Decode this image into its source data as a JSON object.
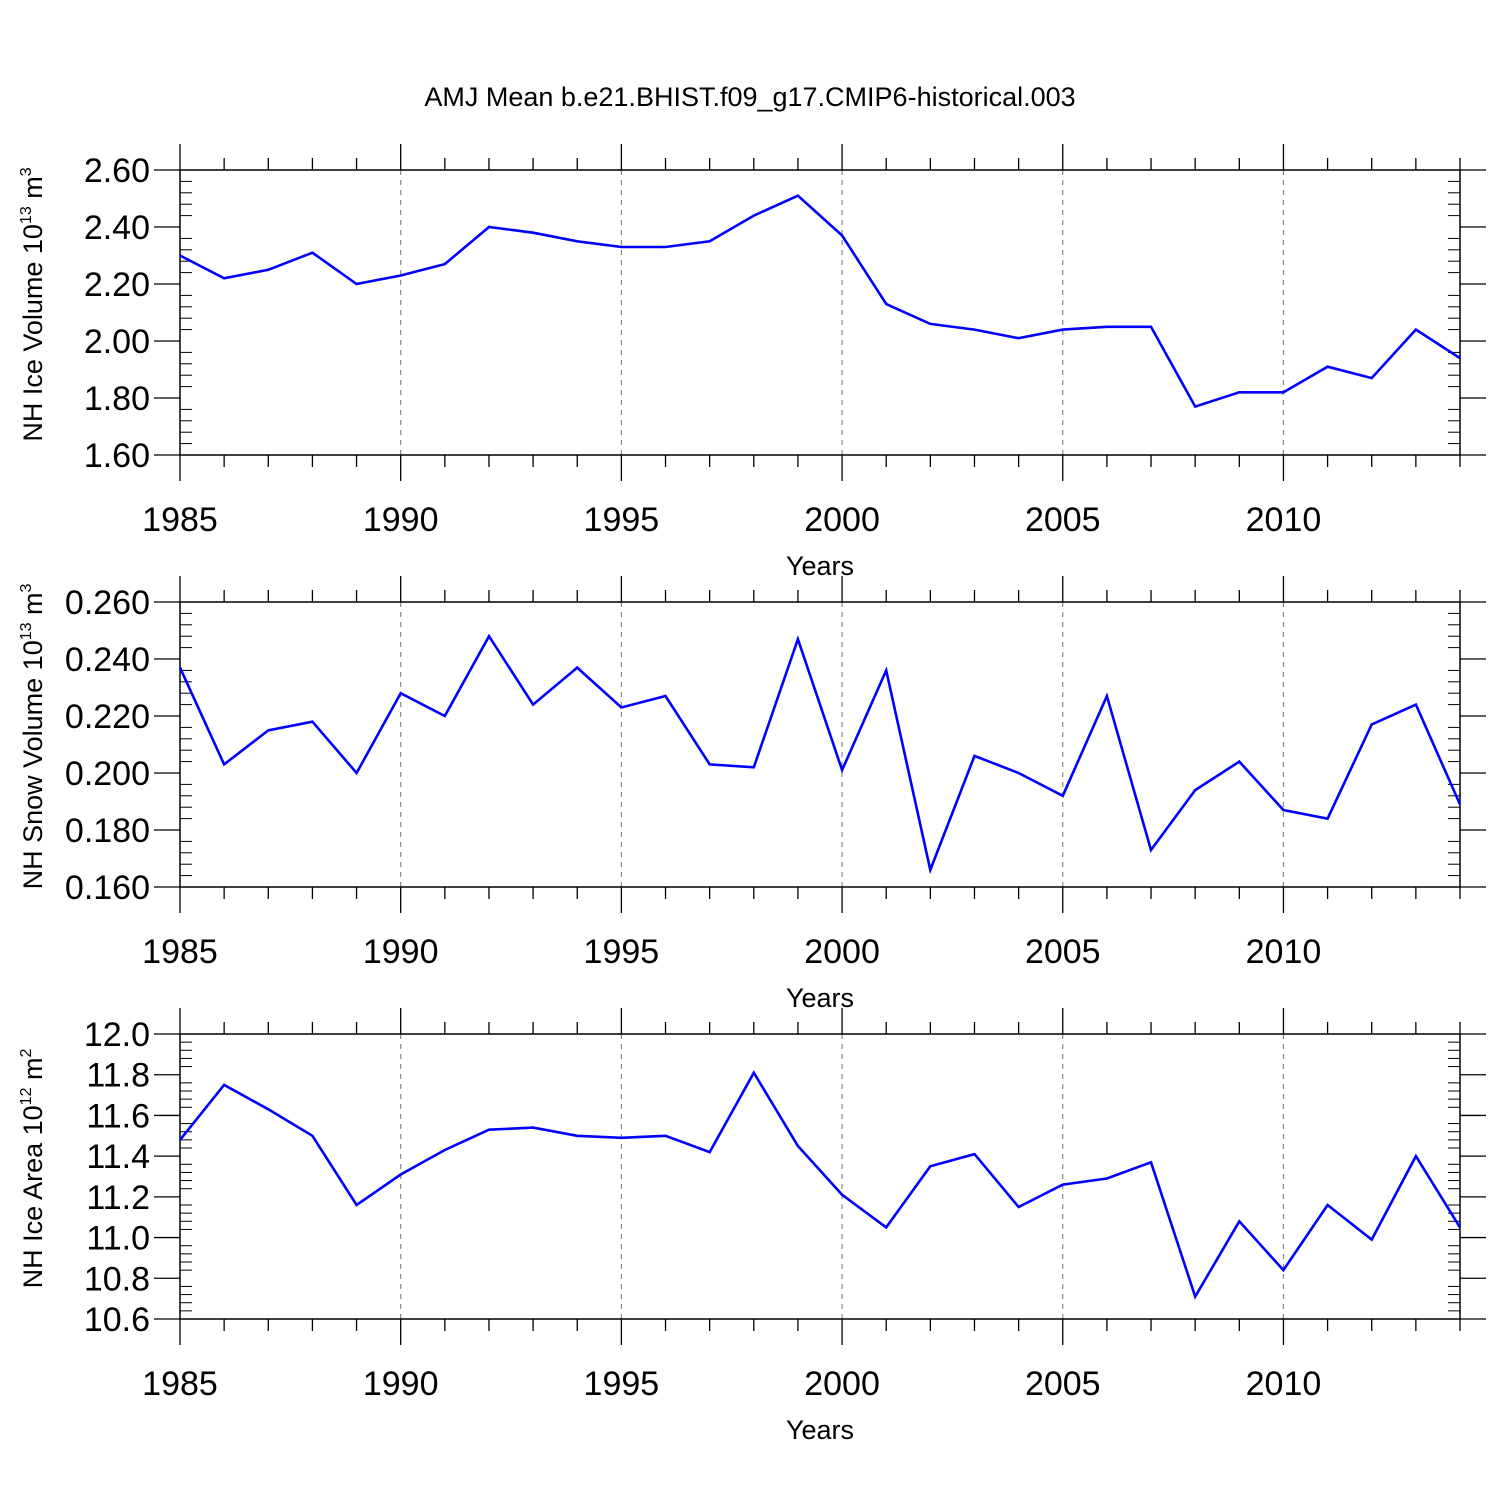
{
  "title": "AMJ Mean b.e21.BHIST.f09_g17.CMIP6-historical.003",
  "line_color": "#0000ff",
  "chart_data": [
    {
      "type": "line",
      "ylabel": {
        "main": "NH Ice Volume 10",
        "exp": "13",
        "unit": " m",
        "unit_exp": "3"
      },
      "xlabel": "Years",
      "x": [
        1985,
        1986,
        1987,
        1988,
        1989,
        1990,
        1991,
        1992,
        1993,
        1994,
        1995,
        1996,
        1997,
        1998,
        1999,
        2000,
        2001,
        2002,
        2003,
        2004,
        2005,
        2006,
        2007,
        2008,
        2009,
        2010,
        2011,
        2012,
        2013,
        2014
      ],
      "values": [
        2.3,
        2.22,
        2.25,
        2.31,
        2.2,
        2.23,
        2.27,
        2.4,
        2.38,
        2.35,
        2.33,
        2.33,
        2.35,
        2.44,
        2.51,
        2.37,
        2.13,
        2.06,
        2.04,
        2.01,
        2.04,
        2.05,
        2.05,
        1.77,
        1.82,
        1.82,
        1.91,
        1.87,
        2.04,
        1.94
      ],
      "xlim": [
        1985,
        2014
      ],
      "ylim": [
        1.6,
        2.6
      ],
      "yticks": [
        "1.60",
        "1.80",
        "2.00",
        "2.20",
        "2.40",
        "2.60"
      ],
      "xticks": [
        "1985",
        "1990",
        "1995",
        "2000",
        "2005",
        "2010"
      ]
    },
    {
      "type": "line",
      "ylabel": {
        "main": "NH Snow Volume 10",
        "exp": "13",
        "unit": " m",
        "unit_exp": "3"
      },
      "xlabel": "Years",
      "x": [
        1985,
        1986,
        1987,
        1988,
        1989,
        1990,
        1991,
        1992,
        1993,
        1994,
        1995,
        1996,
        1997,
        1998,
        1999,
        2000,
        2001,
        2002,
        2003,
        2004,
        2005,
        2006,
        2007,
        2008,
        2009,
        2010,
        2011,
        2012,
        2013,
        2014
      ],
      "values": [
        0.237,
        0.203,
        0.215,
        0.218,
        0.2,
        0.228,
        0.22,
        0.248,
        0.224,
        0.237,
        0.223,
        0.227,
        0.203,
        0.202,
        0.247,
        0.201,
        0.236,
        0.166,
        0.206,
        0.2,
        0.192,
        0.227,
        0.173,
        0.194,
        0.204,
        0.187,
        0.184,
        0.217,
        0.224,
        0.189
      ],
      "xlim": [
        1985,
        2014
      ],
      "ylim": [
        0.16,
        0.26
      ],
      "yticks": [
        "0.160",
        "0.180",
        "0.200",
        "0.220",
        "0.240",
        "0.260"
      ],
      "xticks": [
        "1985",
        "1990",
        "1995",
        "2000",
        "2005",
        "2010"
      ]
    },
    {
      "type": "line",
      "ylabel": {
        "main": "NH Ice Area 10",
        "exp": "12",
        "unit": " m",
        "unit_exp": "2"
      },
      "xlabel": "Years",
      "x": [
        1985,
        1986,
        1987,
        1988,
        1989,
        1990,
        1991,
        1992,
        1993,
        1994,
        1995,
        1996,
        1997,
        1998,
        1999,
        2000,
        2001,
        2002,
        2003,
        2004,
        2005,
        2006,
        2007,
        2008,
        2009,
        2010,
        2011,
        2012,
        2013,
        2014
      ],
      "values": [
        11.48,
        11.75,
        11.63,
        11.5,
        11.16,
        11.31,
        11.43,
        11.53,
        11.54,
        11.5,
        11.49,
        11.5,
        11.42,
        11.81,
        11.45,
        11.21,
        11.05,
        11.35,
        11.41,
        11.15,
        11.26,
        11.29,
        11.37,
        10.71,
        11.08,
        10.84,
        11.16,
        10.99,
        11.4,
        11.05
      ],
      "xlim": [
        1985,
        2014
      ],
      "ylim": [
        10.6,
        12.0
      ],
      "yticks": [
        "10.6",
        "10.8",
        "11.0",
        "11.2",
        "11.4",
        "11.6",
        "11.8",
        "12.0"
      ],
      "xticks": [
        "1985",
        "1990",
        "1995",
        "2000",
        "2005",
        "2010"
      ]
    }
  ]
}
